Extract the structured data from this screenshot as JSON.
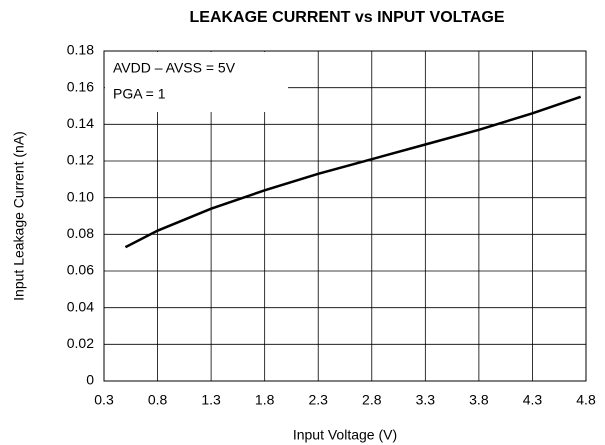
{
  "chart_data": {
    "type": "line",
    "title": "LEAKAGE CURRENT vs INPUT VOLTAGE",
    "x_label": "Input Voltage (V)",
    "y_label": "Input Leakage Current (nA)",
    "annotations": [
      "AVDD – AVSS = 5V",
      "PGA = 1"
    ],
    "x": [
      0.5,
      0.8,
      1.3,
      1.8,
      2.3,
      2.8,
      3.3,
      3.8,
      4.3,
      4.75
    ],
    "values": [
      0.073,
      0.082,
      0.094,
      0.104,
      0.113,
      0.121,
      0.129,
      0.137,
      0.146,
      0.155
    ],
    "color": "#000000",
    "xlim": [
      0.3,
      4.8
    ],
    "xticks": [
      0.3,
      0.8,
      1.3,
      1.8,
      2.3,
      2.8,
      3.3,
      3.8,
      4.3,
      4.8
    ],
    "ylim": [
      0,
      0.18
    ],
    "yticks": [
      0,
      0.02,
      0.04,
      0.06,
      0.08,
      {
        "value": 0.1,
        "label": "0.10"
      },
      0.12,
      0.14,
      0.16,
      0.18
    ],
    "grid": true
  }
}
